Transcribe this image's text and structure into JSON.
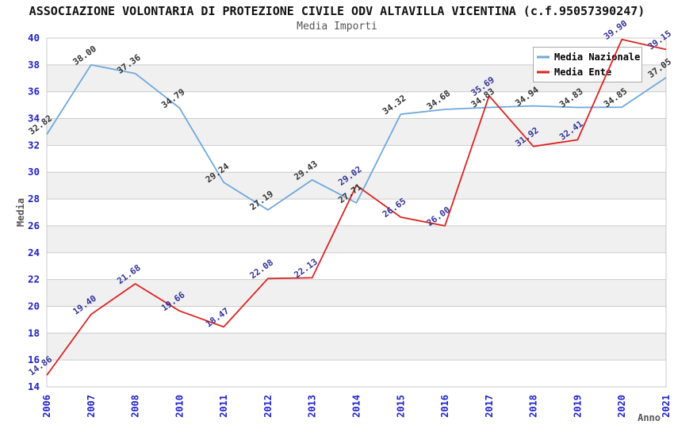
{
  "chart_data": {
    "type": "line",
    "title": "ASSOCIAZIONE VOLONTARIA DI PROTEZIONE CIVILE ODV ALTAVILLA VICENTINA (c.f.95057390247)",
    "subtitle": "Media Importi",
    "xlabel": "Anno",
    "ylabel": "Media",
    "ylim": [
      14,
      40
    ],
    "ytick_step": 2,
    "grid": true,
    "legend_position": "top-right",
    "categories": [
      "2006",
      "2007",
      "2008",
      "2010",
      "2011",
      "2012",
      "2013",
      "2014",
      "2015",
      "2016",
      "2017",
      "2018",
      "2019",
      "2020",
      "2021"
    ],
    "series": [
      {
        "name": "Media Nazionale",
        "color": "#6fa8dc",
        "label_color": "#333333",
        "values": [
          32.82,
          38.0,
          37.36,
          34.79,
          29.24,
          27.19,
          29.43,
          27.71,
          34.32,
          34.68,
          34.83,
          34.94,
          34.83,
          34.85,
          37.05
        ]
      },
      {
        "name": "Media Ente",
        "color": "#dd2222",
        "label_color": "#333399",
        "values": [
          14.86,
          19.4,
          21.68,
          19.66,
          18.47,
          22.08,
          22.13,
          29.02,
          26.65,
          26.0,
          35.69,
          31.92,
          32.41,
          39.9,
          39.15
        ]
      }
    ],
    "styles": {
      "band_color": "#f0f0f0",
      "grid_color": "#cccccc",
      "frame_color": "#c8c8c8",
      "tick_color": "#2222cc",
      "axis_title_color": "#555555",
      "legend_border_color": "#aaaaaa",
      "legend_text_color": "#000000",
      "background": "#ffffff"
    }
  }
}
